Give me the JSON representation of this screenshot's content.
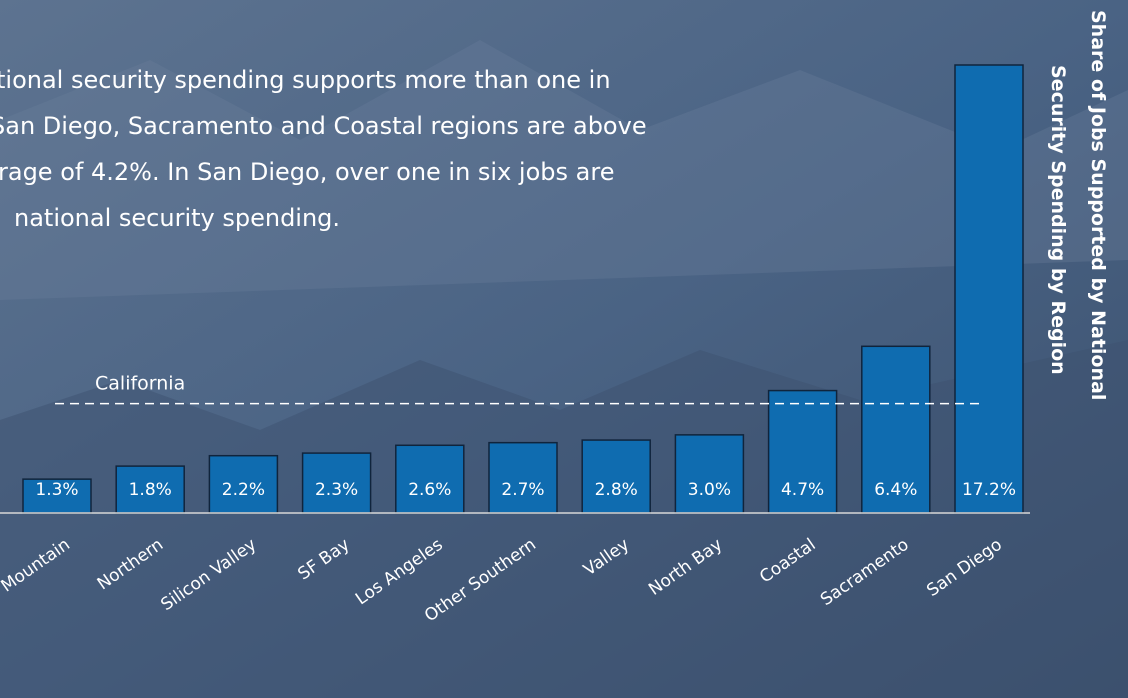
{
  "chart_data": {
    "type": "bar",
    "text": [
      "tional security spending supports more than one in",
      "San Diego, Sacramento and Coastal regions are above",
      "rage of 4.2%. In San Diego, over one in six jobs are",
      "national security spending."
    ],
    "y_label": [
      "Share of Jobs Supported by National",
      "Security Spending by Region"
    ],
    "categories": [
      "Mountain",
      "Northern",
      "Silicon Valley",
      "SF Bay",
      "Los Angeles",
      "Other Southern",
      "Valley",
      "North Bay",
      "Coastal",
      "Sacramento",
      "San Diego"
    ],
    "values": [
      1.3,
      1.8,
      2.2,
      2.3,
      2.6,
      2.7,
      2.8,
      3.0,
      4.7,
      6.4,
      17.2
    ],
    "value_labels": [
      "1.3%",
      "1.8%",
      "2.2%",
      "2.3%",
      "2.6%",
      "2.7%",
      "2.8%",
      "3.0%",
      "4.7%",
      "6.4%",
      "17.2%"
    ],
    "color": "#0f6cb0",
    "reference": {
      "label": "California",
      "value": 4.2
    },
    "ylim": [
      0,
      17.2
    ]
  }
}
